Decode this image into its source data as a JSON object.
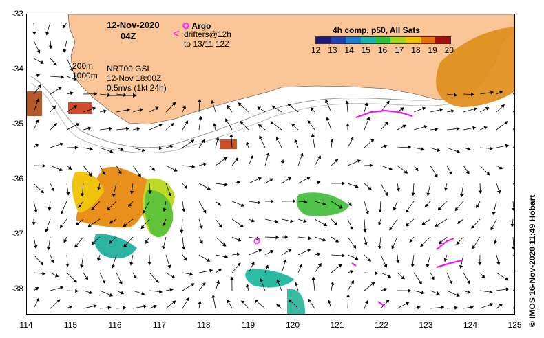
{
  "header": {
    "date": "12-Nov-2020",
    "time": "04Z",
    "argo_label": "Argo",
    "drifters_line1": "drifters@12h",
    "drifters_line2": "to 13/11 12Z",
    "composite": "4h comp, p50, All Sats"
  },
  "info": {
    "depth1": "200m",
    "depth2": "1000m",
    "model": "NRT00 GSL",
    "valid": "12-Nov 18:00Z",
    "scale": "0.5m/s (1kt 24h)"
  },
  "colorbar": {
    "ticks": [
      "12",
      "13",
      "14",
      "15",
      "16",
      "17",
      "18",
      "19",
      "20"
    ],
    "colors": [
      "#1a1a7a",
      "#1f3fb0",
      "#1f7fd0",
      "#20b0b0",
      "#30c040",
      "#a0d020",
      "#f0c000",
      "#e07010",
      "#a01010"
    ]
  },
  "axes": {
    "y_ticks": [
      "-33",
      "-34",
      "-35",
      "-36",
      "-37",
      "-38"
    ],
    "x_ticks": [
      "114",
      "115",
      "116",
      "117",
      "118",
      "119",
      "120",
      "121",
      "122",
      "123",
      "124",
      "125"
    ]
  },
  "credit": "© IMOS 16-Nov-2020 11:49 Hobart",
  "colors": {
    "land": "#f9c596",
    "argo": "#ff33ff",
    "drifter": "#ff00ff"
  }
}
